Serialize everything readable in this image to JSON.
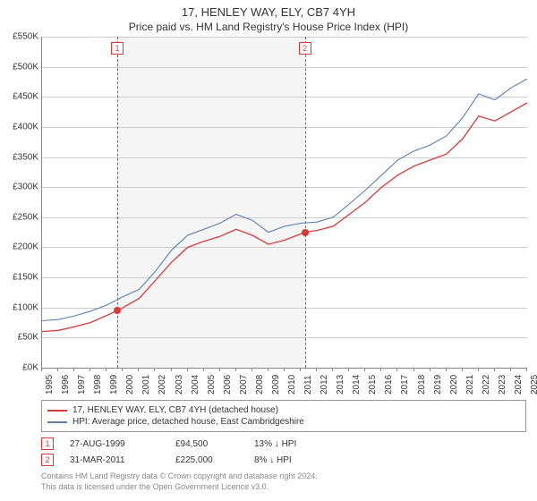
{
  "title": "17, HENLEY WAY, ELY, CB7 4YH",
  "subtitle": "Price paid vs. HM Land Registry's House Price Index (HPI)",
  "chart": {
    "type": "line",
    "ylim": [
      0,
      550
    ],
    "ytick_step": 50,
    "y_prefix": "£",
    "y_suffix": "K",
    "x_years_start": 1995,
    "x_years_end": 2025,
    "background_color": "#ffffff",
    "grid_color": "#cccccc",
    "shaded_region_bg": "rgba(180,180,180,0.13)",
    "shaded_region": {
      "start_year": 1999.65,
      "end_year": 2011.25
    },
    "series": [
      {
        "name": "price_paid",
        "color": "#d83a3a",
        "width": 1.3,
        "legend": "17, HENLEY WAY, ELY, CB7 4YH (detached house)",
        "data": [
          [
            1995,
            60
          ],
          [
            1996,
            62
          ],
          [
            1997,
            68
          ],
          [
            1998,
            75
          ],
          [
            1999.65,
            94.5
          ],
          [
            2001,
            115
          ],
          [
            2002,
            145
          ],
          [
            2003,
            175
          ],
          [
            2004,
            200
          ],
          [
            2005,
            210
          ],
          [
            2006,
            218
          ],
          [
            2007,
            230
          ],
          [
            2008,
            220
          ],
          [
            2009,
            205
          ],
          [
            2010,
            212
          ],
          [
            2011.25,
            225
          ],
          [
            2012,
            228
          ],
          [
            2013,
            235
          ],
          [
            2014,
            255
          ],
          [
            2015,
            275
          ],
          [
            2016,
            300
          ],
          [
            2017,
            320
          ],
          [
            2018,
            335
          ],
          [
            2019,
            345
          ],
          [
            2020,
            355
          ],
          [
            2021,
            380
          ],
          [
            2022,
            418
          ],
          [
            2023,
            410
          ],
          [
            2024,
            425
          ],
          [
            2025,
            440
          ]
        ]
      },
      {
        "name": "hpi",
        "color": "#5a7fb5",
        "width": 1.1,
        "legend": "HPI: Average price, detached house, East Cambridgeshire",
        "data": [
          [
            1995,
            78
          ],
          [
            1996,
            80
          ],
          [
            1997,
            86
          ],
          [
            1998,
            94
          ],
          [
            1999,
            104
          ],
          [
            2000,
            118
          ],
          [
            2001,
            130
          ],
          [
            2002,
            160
          ],
          [
            2003,
            195
          ],
          [
            2004,
            220
          ],
          [
            2005,
            230
          ],
          [
            2006,
            240
          ],
          [
            2007,
            255
          ],
          [
            2008,
            245
          ],
          [
            2009,
            225
          ],
          [
            2010,
            235
          ],
          [
            2011,
            240
          ],
          [
            2012,
            242
          ],
          [
            2013,
            250
          ],
          [
            2014,
            272
          ],
          [
            2015,
            295
          ],
          [
            2016,
            320
          ],
          [
            2017,
            345
          ],
          [
            2018,
            360
          ],
          [
            2019,
            370
          ],
          [
            2020,
            385
          ],
          [
            2021,
            415
          ],
          [
            2022,
            455
          ],
          [
            2023,
            445
          ],
          [
            2024,
            465
          ],
          [
            2025,
            480
          ]
        ]
      }
    ],
    "markers": [
      {
        "id": "1",
        "year": 1999.65,
        "value": 94.5
      },
      {
        "id": "2",
        "year": 2011.25,
        "value": 225
      }
    ]
  },
  "transactions": [
    {
      "id": "1",
      "date": "27-AUG-1999",
      "price": "£94,500",
      "diff": "13% ↓ HPI"
    },
    {
      "id": "2",
      "date": "31-MAR-2011",
      "price": "£225,000",
      "diff": "8% ↓ HPI"
    }
  ],
  "footer_line1": "Contains HM Land Registry data © Crown copyright and database right 2024.",
  "footer_line2": "This data is licensed under the Open Government Licence v3.0."
}
